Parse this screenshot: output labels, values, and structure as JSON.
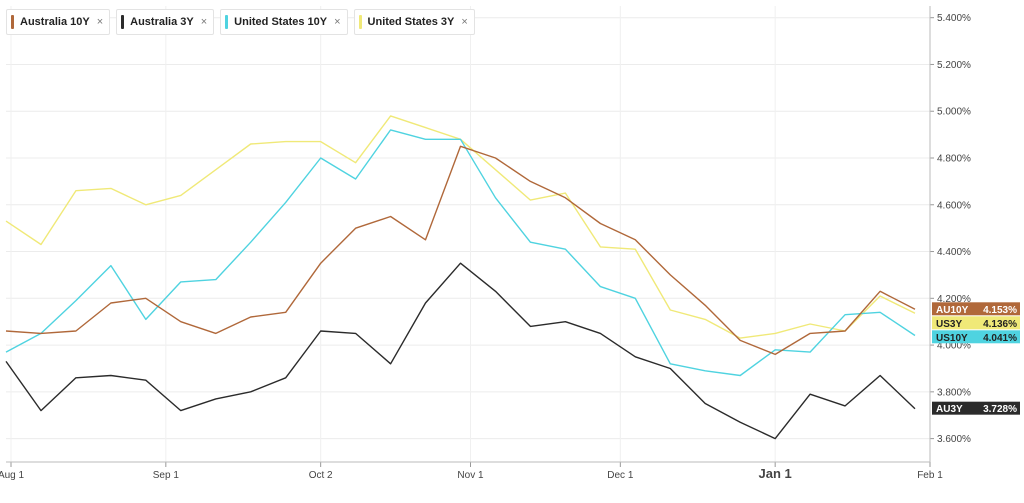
{
  "legend": [
    {
      "label": "Australia 10Y",
      "close": "×",
      "color": "#b0683a"
    },
    {
      "label": "Australia 3Y",
      "close": "×",
      "color": "#2b2b2b"
    },
    {
      "label": "United States 10Y",
      "close": "×",
      "color": "#4fd3e0"
    },
    {
      "label": "United States 3Y",
      "close": "×",
      "color": "#f0e978"
    }
  ],
  "chart_data": {
    "type": "line",
    "title": "",
    "xlabel": "",
    "ylabel": "",
    "x_axis": {
      "range": [
        "2023-07-31",
        "2024-02-01"
      ],
      "ticks": [
        {
          "date": "2023-08-01",
          "label": "Aug 1",
          "bold": false
        },
        {
          "date": "2023-09-01",
          "label": "Sep 1",
          "bold": false
        },
        {
          "date": "2023-10-02",
          "label": "Oct 2",
          "bold": false
        },
        {
          "date": "2023-11-01",
          "label": "Nov 1",
          "bold": false
        },
        {
          "date": "2023-12-01",
          "label": "Dec 1",
          "bold": false
        },
        {
          "date": "2024-01-01",
          "label": "Jan 1",
          "bold": true
        },
        {
          "date": "2024-02-01",
          "label": "Feb 1",
          "bold": false
        }
      ]
    },
    "y_axis": {
      "min": 3.5,
      "max": 5.45,
      "ticks": [
        {
          "value": 3.6,
          "label": "3.600%"
        },
        {
          "value": 3.8,
          "label": "3.800%"
        },
        {
          "value": 4.0,
          "label": "4.000%"
        },
        {
          "value": 4.2,
          "label": "4.200%"
        },
        {
          "value": 4.4,
          "label": "4.400%"
        },
        {
          "value": 4.6,
          "label": "4.600%"
        },
        {
          "value": 4.8,
          "label": "4.800%"
        },
        {
          "value": 5.0,
          "label": "5.000%"
        },
        {
          "value": 5.2,
          "label": "5.200%"
        },
        {
          "value": 5.4,
          "label": "5.400%"
        }
      ],
      "position": "right"
    },
    "grid": {
      "horizontal": true,
      "vertical": true
    },
    "series": [
      {
        "name": "Australia 10Y",
        "tag": "AU10Y",
        "last_label": "4.153%",
        "color": "#b0683a",
        "points": [
          [
            "2023-07-31",
            4.06
          ],
          [
            "2023-08-07",
            4.05
          ],
          [
            "2023-08-14",
            4.06
          ],
          [
            "2023-08-21",
            4.18
          ],
          [
            "2023-08-28",
            4.2
          ],
          [
            "2023-09-04",
            4.1
          ],
          [
            "2023-09-11",
            4.05
          ],
          [
            "2023-09-18",
            4.12
          ],
          [
            "2023-09-25",
            4.14
          ],
          [
            "2023-10-02",
            4.35
          ],
          [
            "2023-10-09",
            4.5
          ],
          [
            "2023-10-16",
            4.55
          ],
          [
            "2023-10-23",
            4.45
          ],
          [
            "2023-10-30",
            4.85
          ],
          [
            "2023-11-06",
            4.8
          ],
          [
            "2023-11-13",
            4.7
          ],
          [
            "2023-11-20",
            4.63
          ],
          [
            "2023-11-27",
            4.52
          ],
          [
            "2023-12-04",
            4.45
          ],
          [
            "2023-12-11",
            4.3
          ],
          [
            "2023-12-18",
            4.17
          ],
          [
            "2023-12-25",
            4.02
          ],
          [
            "2024-01-01",
            3.96
          ],
          [
            "2024-01-08",
            4.05
          ],
          [
            "2024-01-15",
            4.06
          ],
          [
            "2024-01-22",
            4.23
          ],
          [
            "2024-01-29",
            4.153
          ]
        ]
      },
      {
        "name": "Australia 3Y",
        "tag": "AU3Y",
        "last_label": "3.728%",
        "color": "#2b2b2b",
        "points": [
          [
            "2023-07-31",
            3.93
          ],
          [
            "2023-08-07",
            3.72
          ],
          [
            "2023-08-14",
            3.86
          ],
          [
            "2023-08-21",
            3.87
          ],
          [
            "2023-08-28",
            3.85
          ],
          [
            "2023-09-04",
            3.72
          ],
          [
            "2023-09-11",
            3.77
          ],
          [
            "2023-09-18",
            3.8
          ],
          [
            "2023-09-25",
            3.86
          ],
          [
            "2023-10-02",
            4.06
          ],
          [
            "2023-10-09",
            4.05
          ],
          [
            "2023-10-16",
            3.92
          ],
          [
            "2023-10-23",
            4.18
          ],
          [
            "2023-10-30",
            4.35
          ],
          [
            "2023-11-06",
            4.23
          ],
          [
            "2023-11-13",
            4.08
          ],
          [
            "2023-11-20",
            4.1
          ],
          [
            "2023-11-27",
            4.05
          ],
          [
            "2023-12-04",
            3.95
          ],
          [
            "2023-12-11",
            3.9
          ],
          [
            "2023-12-18",
            3.75
          ],
          [
            "2023-12-25",
            3.67
          ],
          [
            "2024-01-01",
            3.6
          ],
          [
            "2024-01-08",
            3.79
          ],
          [
            "2024-01-15",
            3.74
          ],
          [
            "2024-01-22",
            3.87
          ],
          [
            "2024-01-29",
            3.728
          ]
        ]
      },
      {
        "name": "United States 10Y",
        "tag": "US10Y",
        "last_label": "4.041%",
        "color": "#4fd3e0",
        "points": [
          [
            "2023-07-31",
            3.97
          ],
          [
            "2023-08-07",
            4.05
          ],
          [
            "2023-08-14",
            4.19
          ],
          [
            "2023-08-21",
            4.34
          ],
          [
            "2023-08-28",
            4.11
          ],
          [
            "2023-09-04",
            4.27
          ],
          [
            "2023-09-11",
            4.28
          ],
          [
            "2023-09-18",
            4.44
          ],
          [
            "2023-09-25",
            4.61
          ],
          [
            "2023-10-02",
            4.8
          ],
          [
            "2023-10-09",
            4.71
          ],
          [
            "2023-10-16",
            4.92
          ],
          [
            "2023-10-23",
            4.88
          ],
          [
            "2023-10-30",
            4.88
          ],
          [
            "2023-11-06",
            4.63
          ],
          [
            "2023-11-13",
            4.44
          ],
          [
            "2023-11-20",
            4.41
          ],
          [
            "2023-11-27",
            4.25
          ],
          [
            "2023-12-04",
            4.2
          ],
          [
            "2023-12-11",
            3.92
          ],
          [
            "2023-12-18",
            3.89
          ],
          [
            "2023-12-25",
            3.87
          ],
          [
            "2024-01-01",
            3.98
          ],
          [
            "2024-01-08",
            3.97
          ],
          [
            "2024-01-15",
            4.13
          ],
          [
            "2024-01-22",
            4.14
          ],
          [
            "2024-01-29",
            4.041
          ]
        ]
      },
      {
        "name": "United States 3Y",
        "tag": "US3Y",
        "last_label": "4.136%",
        "color": "#f0e978",
        "points": [
          [
            "2023-07-31",
            4.53
          ],
          [
            "2023-08-07",
            4.43
          ],
          [
            "2023-08-14",
            4.66
          ],
          [
            "2023-08-21",
            4.67
          ],
          [
            "2023-08-28",
            4.6
          ],
          [
            "2023-09-04",
            4.64
          ],
          [
            "2023-09-11",
            4.75
          ],
          [
            "2023-09-18",
            4.86
          ],
          [
            "2023-09-25",
            4.87
          ],
          [
            "2023-10-02",
            4.87
          ],
          [
            "2023-10-09",
            4.78
          ],
          [
            "2023-10-16",
            4.98
          ],
          [
            "2023-10-23",
            4.93
          ],
          [
            "2023-10-30",
            4.88
          ],
          [
            "2023-11-06",
            4.75
          ],
          [
            "2023-11-13",
            4.62
          ],
          [
            "2023-11-20",
            4.65
          ],
          [
            "2023-11-27",
            4.42
          ],
          [
            "2023-12-04",
            4.41
          ],
          [
            "2023-12-11",
            4.15
          ],
          [
            "2023-12-18",
            4.11
          ],
          [
            "2023-12-25",
            4.03
          ],
          [
            "2024-01-01",
            4.05
          ],
          [
            "2024-01-08",
            4.09
          ],
          [
            "2024-01-15",
            4.06
          ],
          [
            "2024-01-22",
            4.21
          ],
          [
            "2024-01-29",
            4.136
          ]
        ]
      }
    ]
  }
}
